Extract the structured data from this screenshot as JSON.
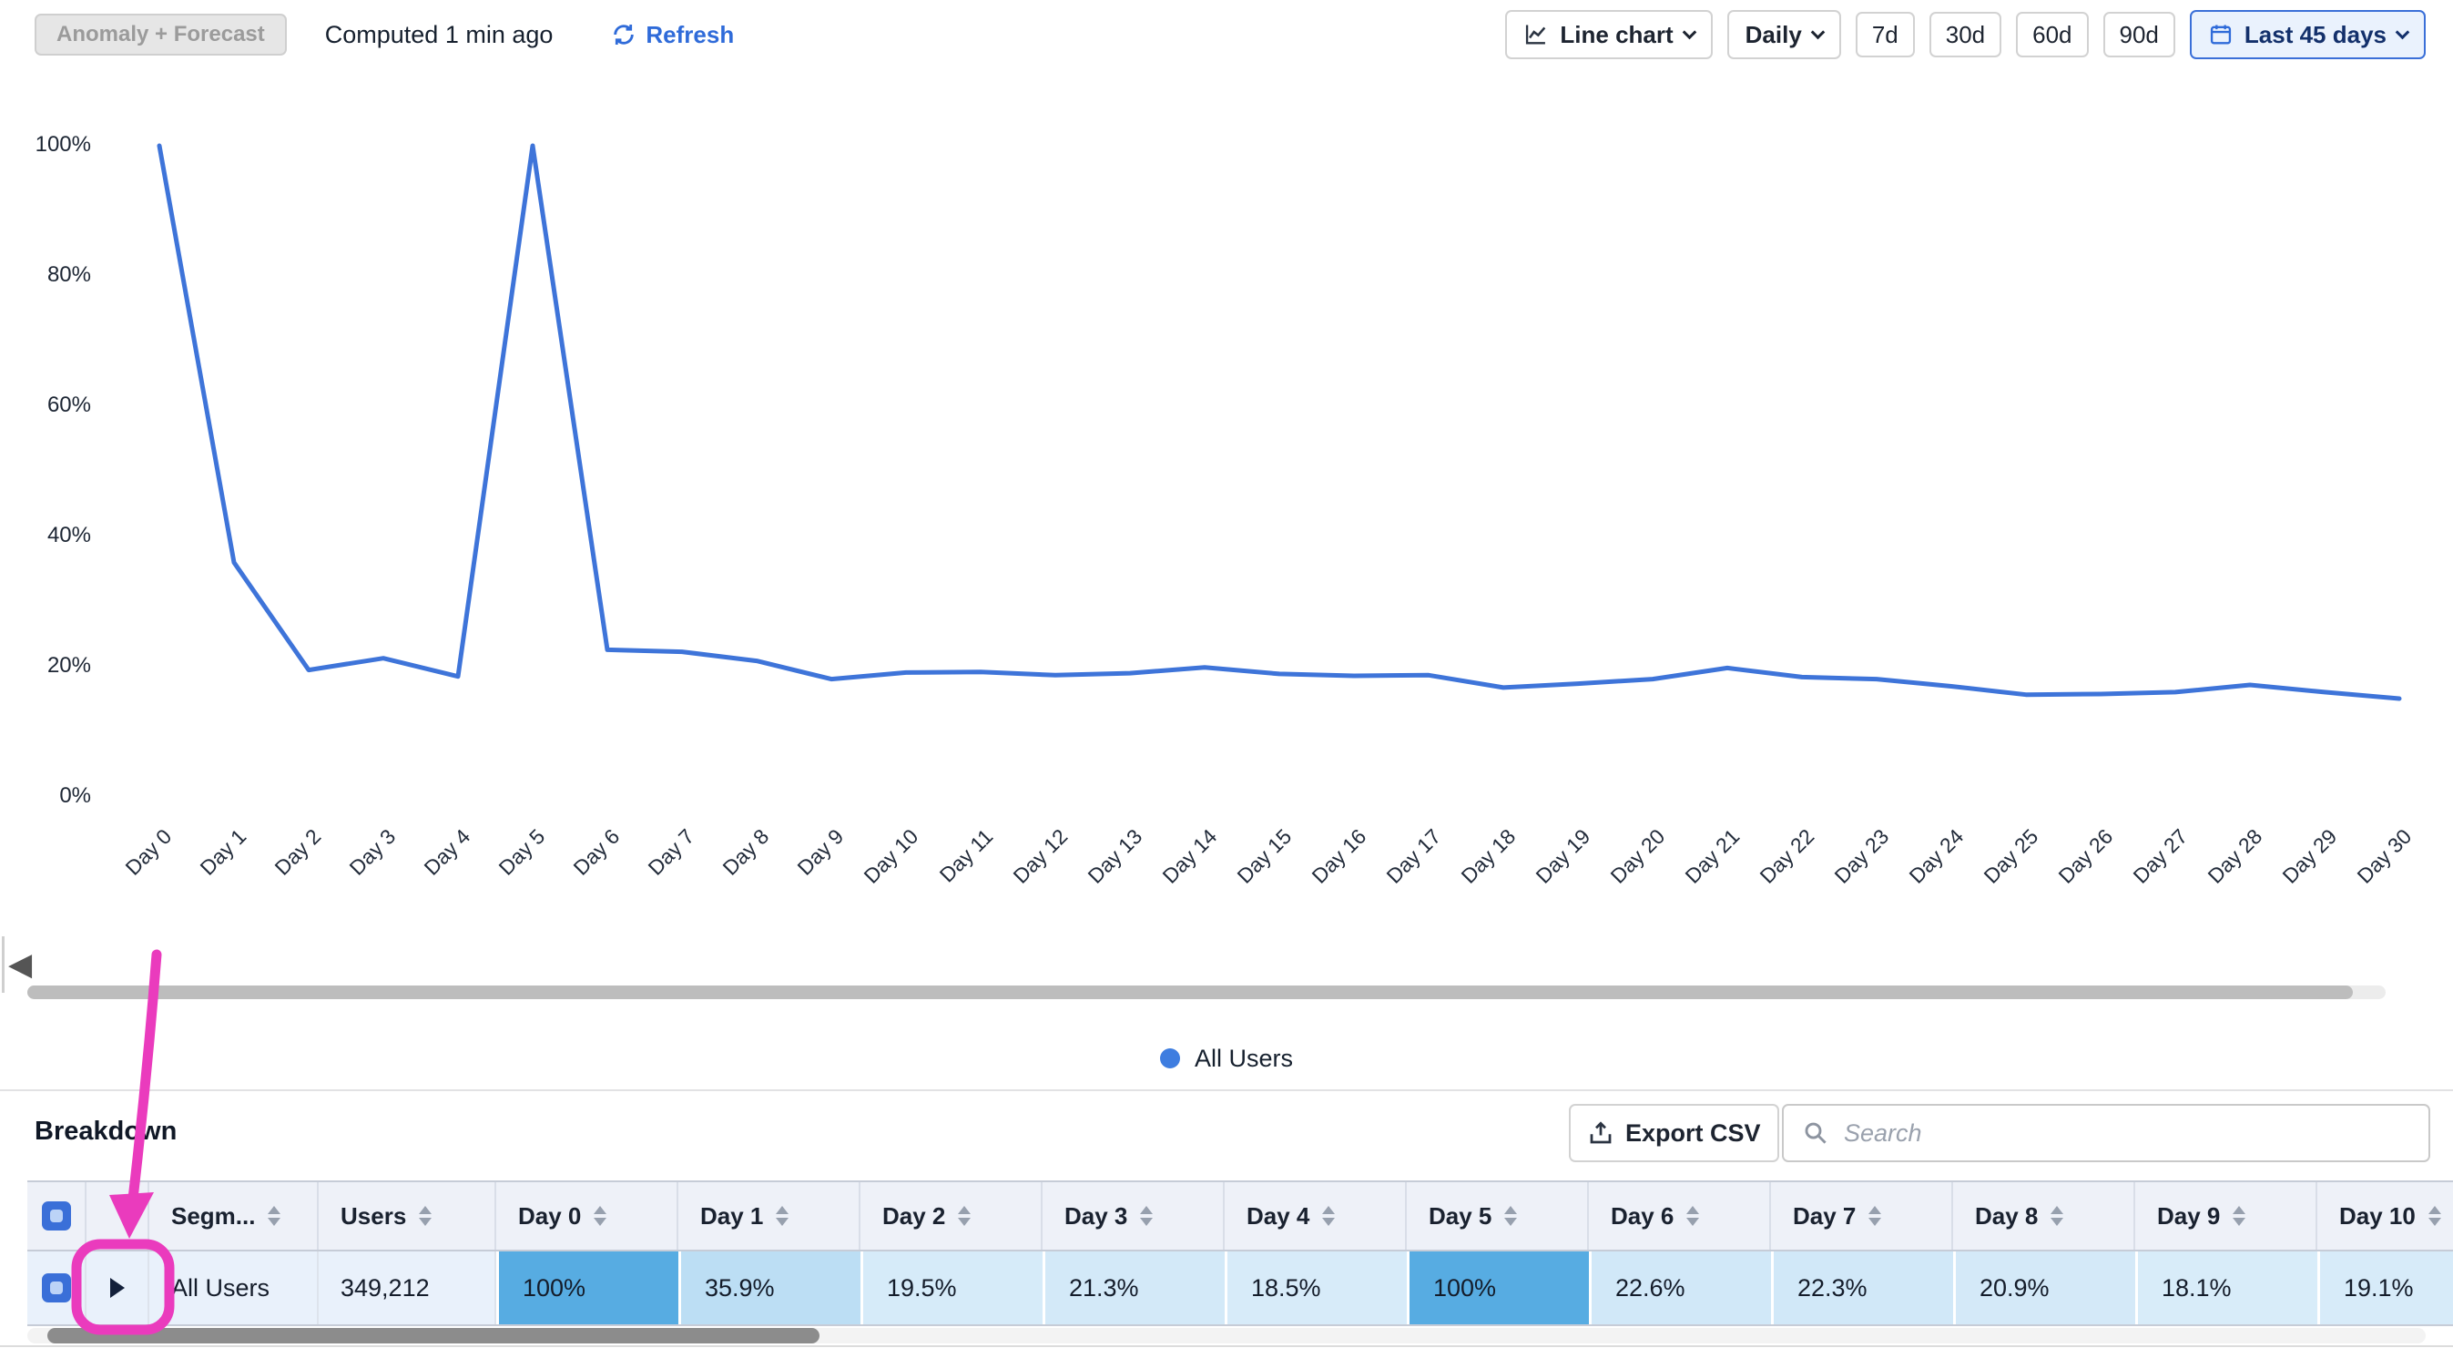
{
  "toolbar": {
    "anomaly_button": "Anomaly + Forecast",
    "computed_text": "Computed 1 min ago",
    "refresh_label": "Refresh",
    "chart_type_label": "Line chart",
    "granularity_label": "Daily",
    "ranges": [
      "7d",
      "30d",
      "60d",
      "90d"
    ],
    "date_range_label": "Last 45 days"
  },
  "chart_data": {
    "type": "line",
    "title": "",
    "x": [
      "Day 0",
      "Day 1",
      "Day 2",
      "Day 3",
      "Day 4",
      "Day 5",
      "Day 6",
      "Day 7",
      "Day 8",
      "Day 9",
      "Day 10",
      "Day 11",
      "Day 12",
      "Day 13",
      "Day 14",
      "Day 15",
      "Day 16",
      "Day 17",
      "Day 18",
      "Day 19",
      "Day 20",
      "Day 21",
      "Day 22",
      "Day 23",
      "Day 24",
      "Day 25",
      "Day 26",
      "Day 27",
      "Day 28",
      "Day 29",
      "Day 30"
    ],
    "series": [
      {
        "name": "All Users",
        "color": "#3e74d9",
        "values": [
          100,
          36,
          19.5,
          21.3,
          18.5,
          100,
          22.6,
          22.3,
          20.9,
          18.1,
          19.1,
          19.2,
          18.7,
          19.0,
          19.9,
          18.9,
          18.6,
          18.7,
          16.8,
          17.4,
          18.1,
          19.8,
          18.4,
          18.1,
          17.0,
          15.7,
          15.8,
          16.1,
          17.2,
          16.1,
          15.1
        ]
      }
    ],
    "ylim": [
      0,
      100
    ],
    "yticks": [
      "0%",
      "20%",
      "40%",
      "60%",
      "80%",
      "100%"
    ],
    "grid": false,
    "legend_position": "bottom"
  },
  "legend": {
    "items": [
      {
        "label": "All Users",
        "color": "#3e7de0"
      }
    ]
  },
  "breakdown": {
    "title": "Breakdown",
    "export_label": "Export CSV",
    "search_placeholder": "Search",
    "columns": {
      "segment": "Segm...",
      "users": "Users",
      "days": [
        "Day 0",
        "Day 1",
        "Day 2",
        "Day 3",
        "Day 4",
        "Day 5",
        "Day 6",
        "Day 7",
        "Day 8",
        "Day 9",
        "Day 10"
      ]
    },
    "row": {
      "segment": "All Users",
      "users": "349,212",
      "day_values": [
        {
          "label": "100%",
          "value": 100
        },
        {
          "label": "35.9%",
          "value": 35.9
        },
        {
          "label": "19.5%",
          "value": 19.5
        },
        {
          "label": "21.3%",
          "value": 21.3
        },
        {
          "label": "18.5%",
          "value": 18.5
        },
        {
          "label": "100%",
          "value": 100
        },
        {
          "label": "22.6%",
          "value": 22.6
        },
        {
          "label": "22.3%",
          "value": 22.3
        },
        {
          "label": "20.9%",
          "value": 20.9
        },
        {
          "label": "18.1%",
          "value": 18.1
        },
        {
          "label": "19.1%",
          "value": 19.1
        }
      ]
    }
  },
  "colors": {
    "accent": "#2f6bd9",
    "line": "#3e74d9",
    "cell_high": "#57ace2",
    "cell_low": "#ddeefa",
    "row_tint": "#e9f1fb",
    "header_bg": "#eef1f8",
    "annotation": "#ea3bbd"
  }
}
